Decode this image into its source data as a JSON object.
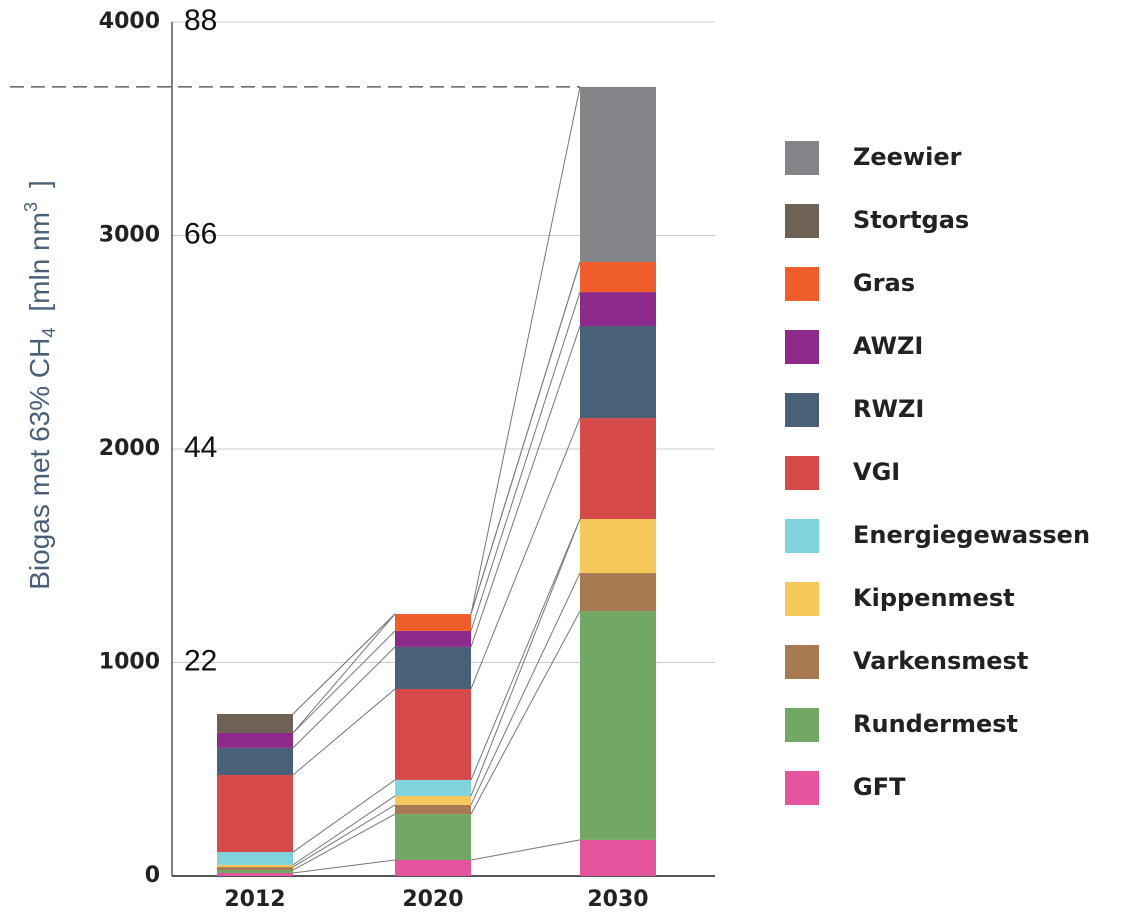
{
  "chart_data": {
    "type": "bar",
    "stacked": true,
    "ylabel_parts": [
      "Biogas met 63% CH",
      "4",
      "[mln nm",
      "3",
      "]"
    ],
    "categories": [
      "2012",
      "2020",
      "2030"
    ],
    "ylim": [
      0,
      4000
    ],
    "yticks": [
      0,
      1000,
      2000,
      3000,
      4000
    ],
    "y2lim": [
      0,
      88
    ],
    "y2ticks": [
      22,
      44,
      66,
      88
    ],
    "grid": true,
    "hline": 3696,
    "legend": "right",
    "series": [
      {
        "name": "GFT",
        "color": "#e5559e",
        "values": [
          14,
          75,
          169
        ]
      },
      {
        "name": "Rundermest",
        "color": "#72a866",
        "values": [
          14,
          215,
          1072
        ]
      },
      {
        "name": "Varkensmest",
        "color": "#a87a52",
        "values": [
          14,
          43,
          178
        ]
      },
      {
        "name": "Kippenmest",
        "color": "#f6c75a",
        "values": [
          10,
          42,
          253
        ]
      },
      {
        "name": "Energiegewassen",
        "color": "#7fd3dc",
        "values": [
          60,
          75,
          0
        ]
      },
      {
        "name": "VGI",
        "color": "#d64b4a",
        "values": [
          361,
          426,
          473
        ]
      },
      {
        "name": "RWZI",
        "color": "#4a5f78",
        "values": [
          127,
          197,
          431
        ]
      },
      {
        "name": "AWZI",
        "color": "#8f2a8d",
        "values": [
          70,
          75,
          159
        ]
      },
      {
        "name": "Gras",
        "color": "#ef5e2a",
        "values": [
          0,
          79,
          141
        ]
      },
      {
        "name": "Stortgas",
        "color": "#6e6254",
        "values": [
          89,
          0,
          0
        ]
      },
      {
        "name": "Zeewier",
        "color": "#848589",
        "values": [
          0,
          0,
          820
        ]
      }
    ]
  }
}
